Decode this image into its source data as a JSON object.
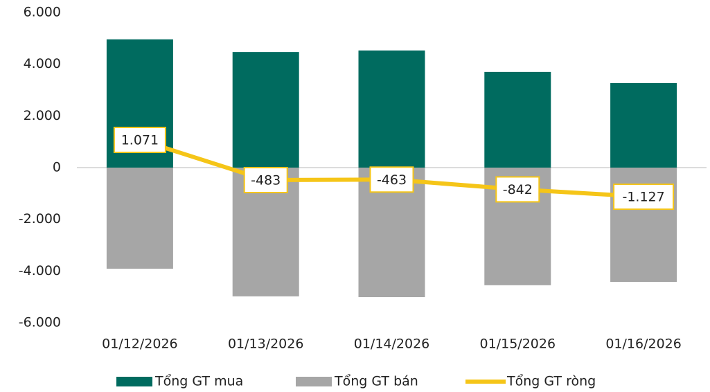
{
  "chart_data": {
    "type": "bar_line",
    "categories": [
      "01/12/2026",
      "01/13/2026",
      "01/14/2026",
      "01/15/2026",
      "01/16/2026"
    ],
    "series": [
      {
        "name": "Tổng GT mua",
        "type": "bar",
        "color": "#006b5f",
        "values": [
          4960,
          4470,
          4530,
          3700,
          3270
        ]
      },
      {
        "name": "Tổng GT bán",
        "type": "bar",
        "color": "#a6a6a6",
        "values": [
          -3910,
          -4980,
          -5010,
          -4550,
          -4420
        ]
      },
      {
        "name": "Tổng GT ròng",
        "type": "line",
        "color": "#f5c518",
        "values": [
          1071,
          -483,
          -463,
          -842,
          -1127
        ],
        "value_labels": [
          "1.071",
          "-483",
          "-463",
          "-842",
          "-1.127"
        ]
      }
    ],
    "ylim": [
      -6000,
      6000
    ],
    "yticks": [
      {
        "value": -6000,
        "label": "-6.000"
      },
      {
        "value": -4000,
        "label": "-4.000"
      },
      {
        "value": -2000,
        "label": "-2.000"
      },
      0,
      {
        "value": 2000,
        "label": "2.000"
      },
      {
        "value": 4000,
        "label": "4.000"
      },
      {
        "value": 6000,
        "label": "6.000"
      }
    ],
    "legend": "bottom"
  }
}
